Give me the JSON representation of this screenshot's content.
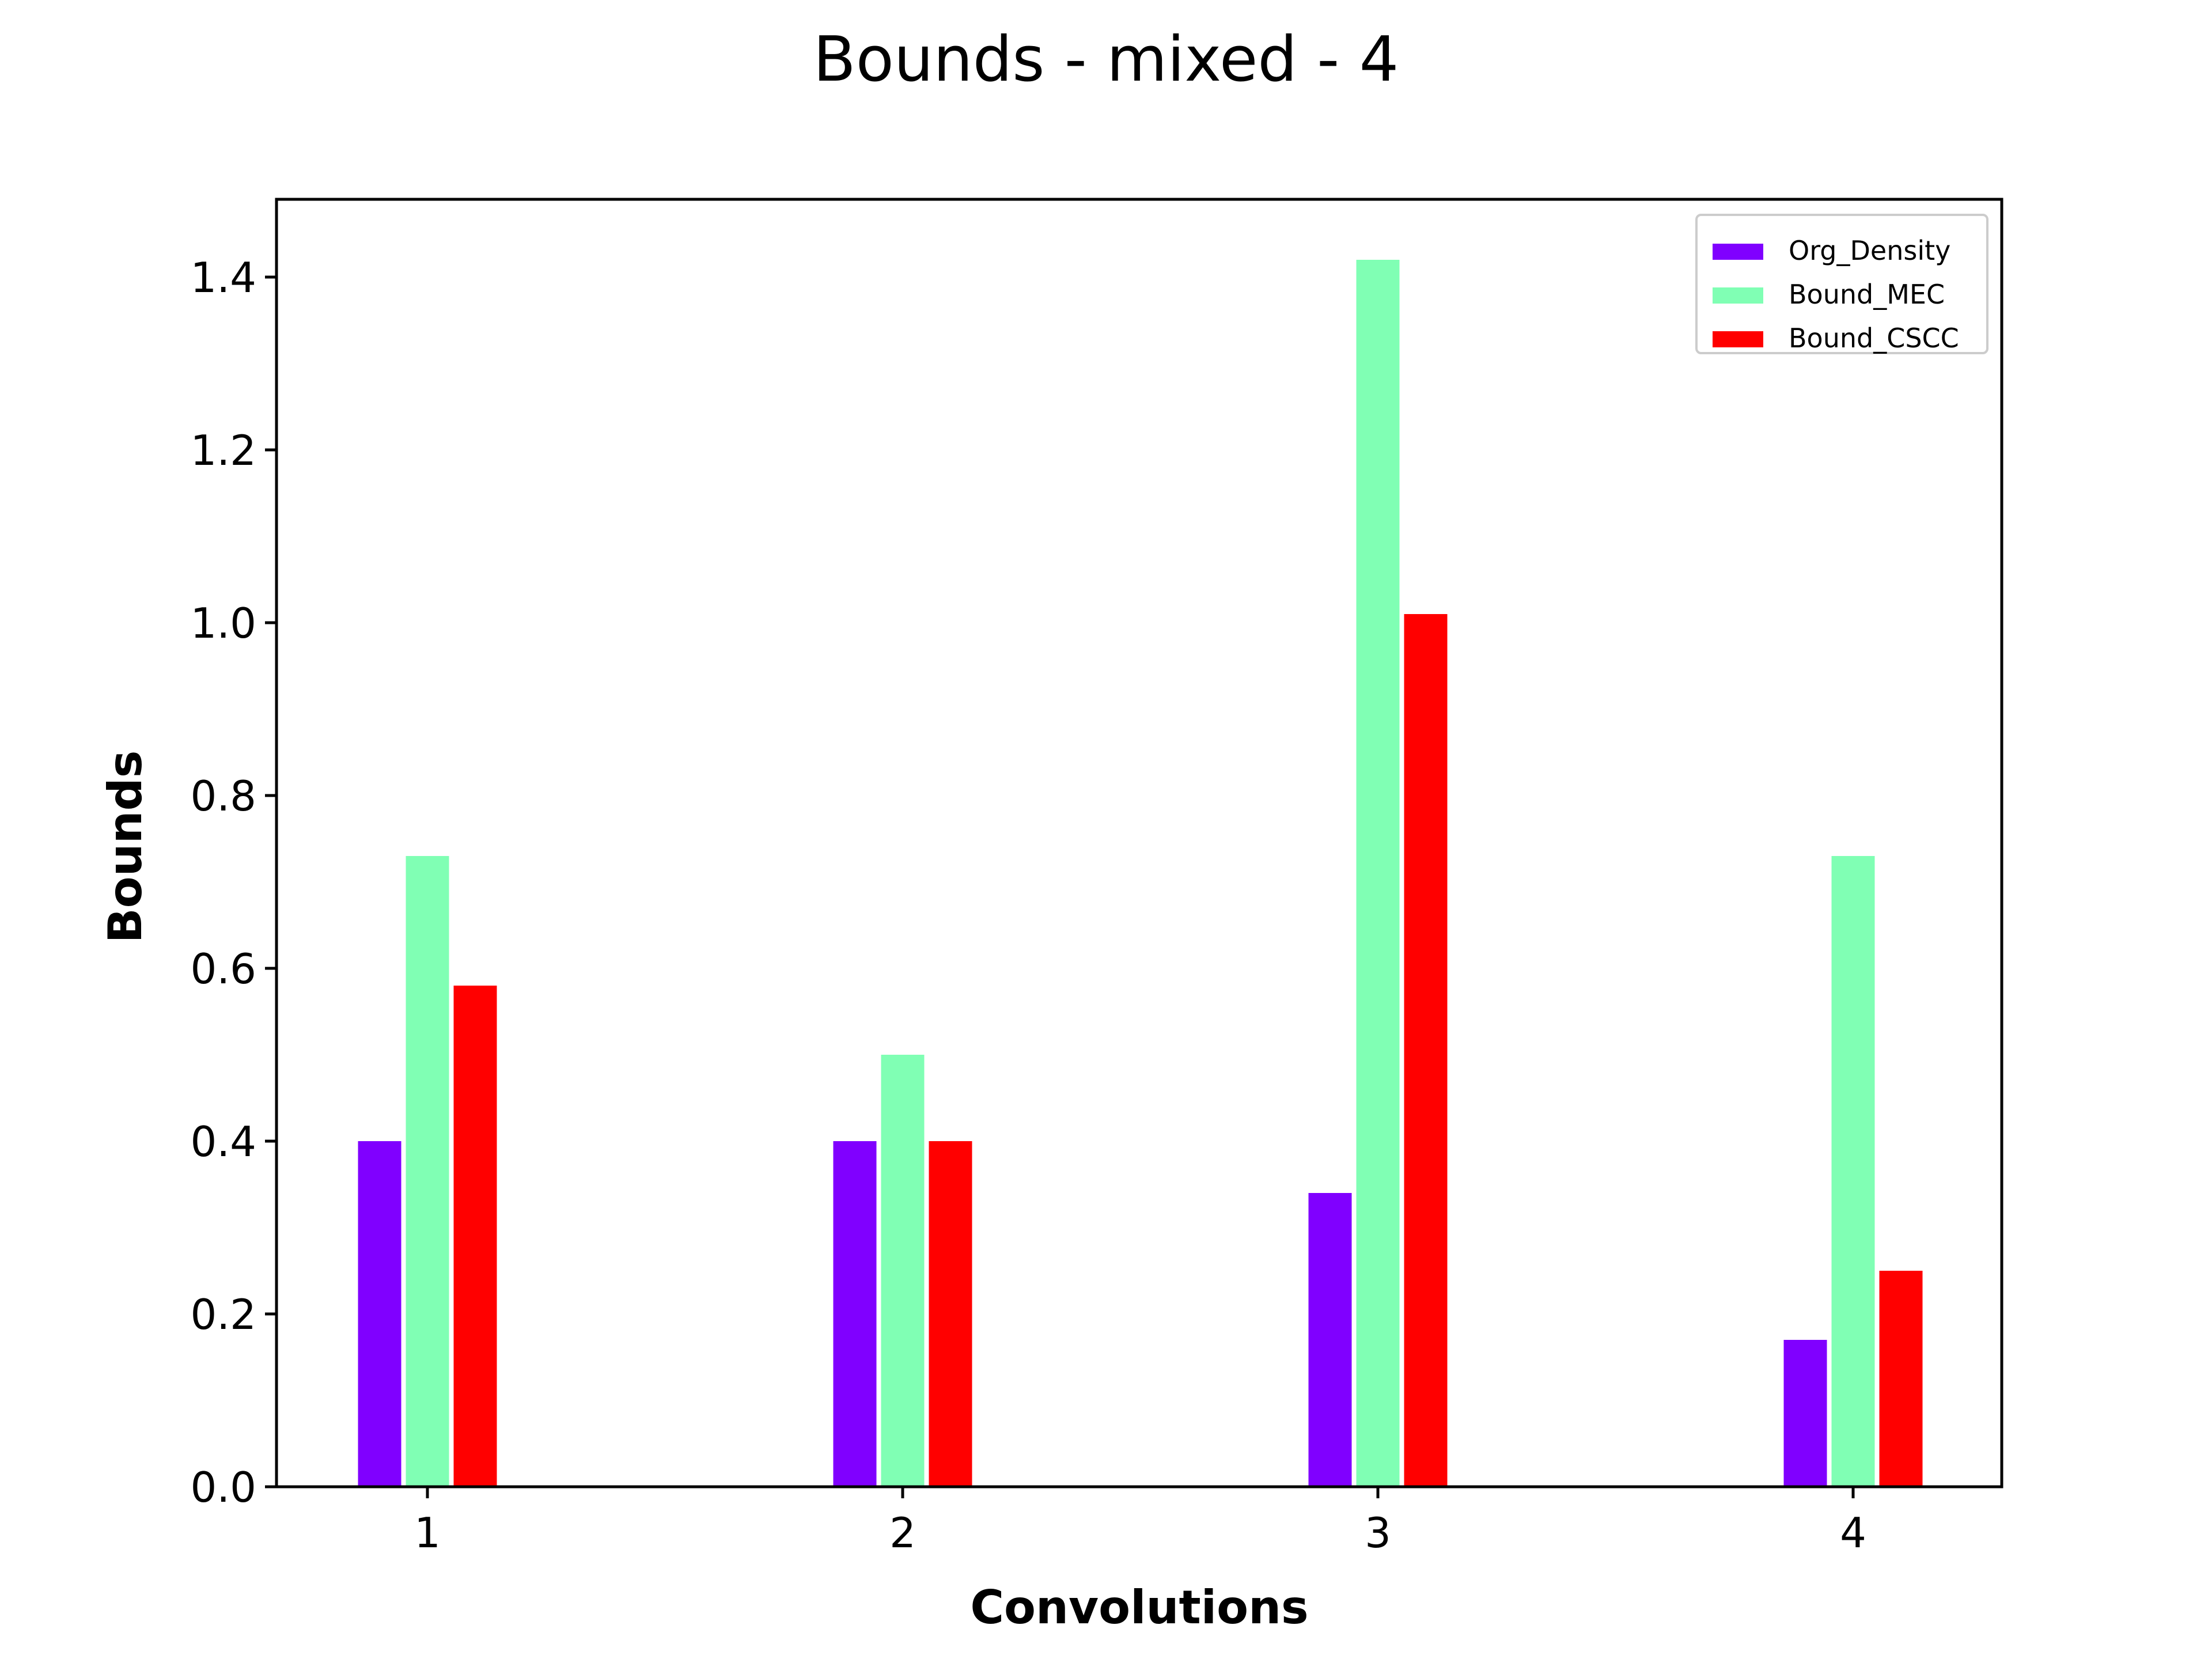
{
  "chart_data": {
    "type": "bar",
    "title": "Bounds - mixed - 4",
    "xlabel": "Convolutions",
    "ylabel": "Bounds",
    "categories": [
      "1",
      "2",
      "3",
      "4"
    ],
    "ylim": [
      0,
      1.49
    ],
    "yticks": [
      "0.0",
      "0.2",
      "0.4",
      "0.6",
      "0.8",
      "1.0",
      "1.2",
      "1.4"
    ],
    "grid": false,
    "legend_position": "top-right",
    "series": [
      {
        "name": "Org_Density",
        "color": "#8000ff",
        "values": [
          0.4,
          0.4,
          0.34,
          0.17
        ]
      },
      {
        "name": "Bound_MEC",
        "color": "#80ffb4",
        "values": [
          0.73,
          0.5,
          1.42,
          0.73
        ]
      },
      {
        "name": "Bound_CSCC",
        "color": "#ff0000",
        "values": [
          0.58,
          0.4,
          1.01,
          0.25
        ]
      }
    ]
  }
}
